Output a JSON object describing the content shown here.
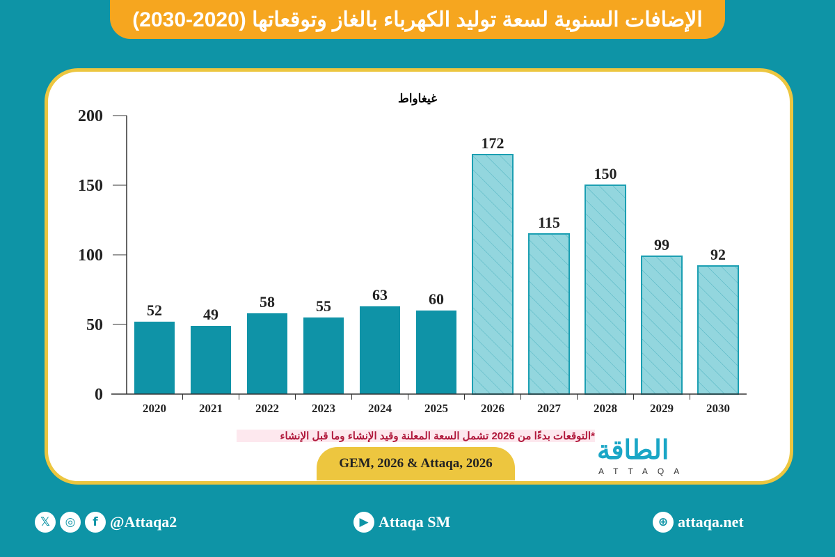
{
  "title": "الإضافات السنوية لسعة توليد الكهرباء بالغاز وتوقعاتها (2020-2030)",
  "note": "*التوقعات بدءًا من 2026 تشمل السعة المعلنة وقيد الإنشاء وما قبل الإنشاء",
  "source": "GEM, 2026 & Attaqa, 2026",
  "logo": {
    "ar": "الطاقة",
    "en": "ATTAQA"
  },
  "footer": {
    "social_handle": "@Attaqa2",
    "youtube": "Attaqa SM",
    "website": "attaqa.net",
    "icons": [
      "x-icon",
      "instagram-icon",
      "facebook-icon",
      "youtube-icon",
      "globe-icon"
    ]
  },
  "colors": {
    "background": "#0e94a6",
    "title_bg": "#f6a61f",
    "actual_bar": "#0f93a7",
    "forecast_bar": "#93d6de",
    "border": "#ecc63f"
  },
  "chart_data": {
    "type": "bar",
    "ylabel": "غيغاواط",
    "ylim": [
      0,
      200
    ],
    "yticks": [
      0,
      50,
      100,
      150,
      200
    ],
    "categories": [
      "2020",
      "2021",
      "2022",
      "2023",
      "2024",
      "2025",
      "2026",
      "2027",
      "2028",
      "2029",
      "2030"
    ],
    "values": [
      52,
      49,
      58,
      55,
      63,
      60,
      172,
      115,
      150,
      99,
      92
    ],
    "forecast": [
      false,
      false,
      false,
      false,
      false,
      false,
      true,
      true,
      true,
      true,
      true
    ],
    "grid": false
  }
}
